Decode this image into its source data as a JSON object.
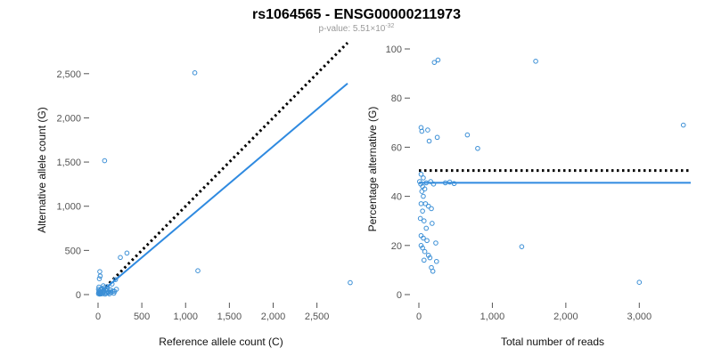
{
  "figure": {
    "title": "rs1064565 - ENSG00000211973",
    "subtitle_prefix": "p-value: 5.51×10",
    "subtitle_exponent": "-32"
  },
  "colors": {
    "points": "#3b8fd6",
    "fit_line": "#2f8ae0",
    "reference_line": "#000000"
  },
  "chart_data": [
    {
      "type": "scatter",
      "xlabel": "Reference allele count (C)",
      "ylabel": "Alternative allele count (G)",
      "xlim": [
        0,
        2850
      ],
      "ylim": [
        0,
        2800
      ],
      "xticks": [
        0,
        500,
        1000,
        1500,
        2000,
        2500
      ],
      "xtick_labels": [
        "0",
        "500",
        "1,000",
        "1,500",
        "2,000",
        "2,500"
      ],
      "yticks": [
        0,
        500,
        1000,
        1500,
        2000,
        2500
      ],
      "ytick_labels": [
        "0",
        "500",
        "1,000",
        "1,500",
        "2,000",
        "2,500"
      ],
      "points": [
        [
          1105,
          2510
        ],
        [
          75,
          1515
        ],
        [
          1140,
          270
        ],
        [
          2880,
          135
        ],
        [
          330,
          470
        ],
        [
          255,
          420
        ],
        [
          20,
          260
        ],
        [
          25,
          210
        ],
        [
          15,
          180
        ],
        [
          60,
          100
        ],
        [
          110,
          60
        ],
        [
          200,
          170
        ],
        [
          160,
          120
        ],
        [
          5,
          10
        ],
        [
          8,
          25
        ],
        [
          12,
          40
        ],
        [
          18,
          5
        ],
        [
          22,
          15
        ],
        [
          28,
          30
        ],
        [
          30,
          55
        ],
        [
          35,
          20
        ],
        [
          40,
          8
        ],
        [
          45,
          70
        ],
        [
          50,
          35
        ],
        [
          55,
          12
        ],
        [
          62,
          45
        ],
        [
          70,
          25
        ],
        [
          75,
          80
        ],
        [
          80,
          5
        ],
        [
          88,
          50
        ],
        [
          95,
          15
        ],
        [
          100,
          40
        ],
        [
          105,
          90
        ],
        [
          115,
          20
        ],
        [
          120,
          30
        ],
        [
          130,
          8
        ],
        [
          140,
          55
        ],
        [
          150,
          25
        ],
        [
          170,
          40
        ],
        [
          180,
          15
        ],
        [
          190,
          35
        ],
        [
          210,
          60
        ],
        [
          5,
          60
        ],
        [
          10,
          85
        ]
      ],
      "reference_line": [
        [
          0,
          0
        ],
        [
          2850,
          2850
        ]
      ],
      "fit_line": [
        [
          0,
          0
        ],
        [
          2850,
          2390
        ]
      ]
    },
    {
      "type": "scatter",
      "xlabel": "Total number of reads",
      "ylabel": "Percentage alternative (G)",
      "xlim": [
        0,
        3700
      ],
      "ylim": [
        0,
        100
      ],
      "xticks": [
        0,
        1000,
        2000,
        3000
      ],
      "xtick_labels": [
        "0",
        "1,000",
        "2,000",
        "3,000"
      ],
      "yticks": [
        0,
        20,
        40,
        60,
        80,
        100
      ],
      "ytick_labels": [
        "0",
        "20",
        "40",
        "60",
        "80",
        "100"
      ],
      "points": [
        [
          210,
          94.5
        ],
        [
          260,
          95.5
        ],
        [
          1590,
          95
        ],
        [
          3600,
          69
        ],
        [
          30,
          68
        ],
        [
          40,
          66.5
        ],
        [
          120,
          67
        ],
        [
          660,
          65
        ],
        [
          250,
          64
        ],
        [
          140,
          62.5
        ],
        [
          800,
          59.5
        ],
        [
          30,
          49
        ],
        [
          60,
          47.5
        ],
        [
          10,
          46
        ],
        [
          25,
          45
        ],
        [
          50,
          44
        ],
        [
          80,
          43
        ],
        [
          100,
          45.5
        ],
        [
          160,
          46
        ],
        [
          200,
          45
        ],
        [
          360,
          45.5
        ],
        [
          420,
          45.8
        ],
        [
          480,
          45.2
        ],
        [
          40,
          42
        ],
        [
          60,
          40
        ],
        [
          90,
          37
        ],
        [
          130,
          36
        ],
        [
          170,
          35
        ],
        [
          30,
          37
        ],
        [
          50,
          34
        ],
        [
          20,
          31
        ],
        [
          70,
          30
        ],
        [
          180,
          29
        ],
        [
          100,
          27
        ],
        [
          30,
          24
        ],
        [
          60,
          23
        ],
        [
          110,
          22
        ],
        [
          230,
          21
        ],
        [
          30,
          20
        ],
        [
          50,
          19
        ],
        [
          80,
          17.5
        ],
        [
          130,
          16
        ],
        [
          150,
          15
        ],
        [
          70,
          14
        ],
        [
          240,
          13.5
        ],
        [
          170,
          11
        ],
        [
          190,
          9.5
        ],
        [
          1400,
          19.5
        ],
        [
          3000,
          5
        ]
      ],
      "reference_line": [
        [
          0,
          50.5
        ],
        [
          3700,
          50.5
        ]
      ],
      "fit_line": [
        [
          0,
          45.5
        ],
        [
          3700,
          45.5
        ]
      ]
    }
  ]
}
